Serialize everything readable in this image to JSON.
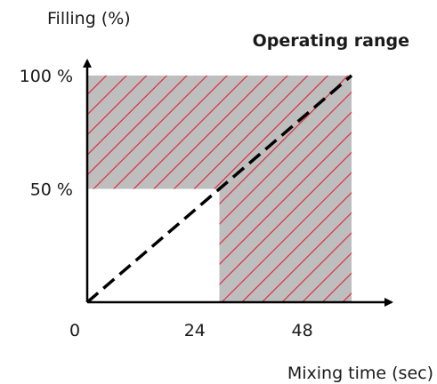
{
  "chart_data": {
    "type": "area",
    "title": "Operating range",
    "ylabel": "Filling (%)",
    "xlabel": "Mixing time (sec)",
    "xlim": [
      0,
      59
    ],
    "ylim": [
      0,
      100
    ],
    "x_ticks": [
      {
        "value": 0,
        "label": "0"
      },
      {
        "value": 24,
        "label": "24"
      },
      {
        "value": 48,
        "label": "48"
      }
    ],
    "y_ticks": [
      {
        "value": 50,
        "label": "50 %"
      },
      {
        "value": 100,
        "label": "100 %"
      }
    ],
    "operating_region": [
      [
        0,
        100
      ],
      [
        59,
        100
      ],
      [
        59,
        0
      ],
      [
        29.5,
        0
      ],
      [
        29.5,
        50
      ],
      [
        0,
        50
      ]
    ],
    "diagonal_line": {
      "x": [
        0,
        59
      ],
      "y": [
        0,
        100
      ],
      "style": "dashed"
    },
    "grid": false,
    "colors": {
      "region_fill": "#bebebe",
      "hatch": "#e0203a",
      "line": "#000000",
      "axis": "#000000"
    }
  }
}
